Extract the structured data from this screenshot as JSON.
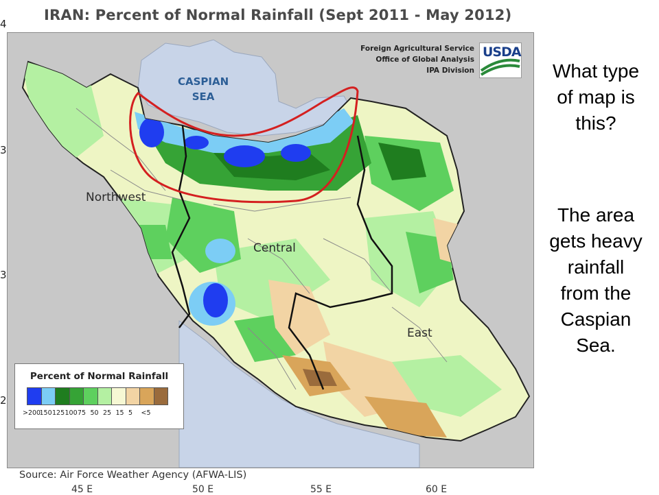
{
  "map": {
    "title": "IRAN: Percent of Normal Rainfall (Sept 2011 - May 2012)",
    "agency_lines": [
      "Foreign Agricultural Service",
      "Office of Global Analysis",
      "IPA Division"
    ],
    "logo_text": "USDA",
    "sea_label_lines": [
      "CASPIAN",
      "SEA"
    ],
    "region_labels": {
      "northwest": "Northwest",
      "central": "Central",
      "east": "East"
    },
    "source": "Source: Air Force Weather Agency (AFWA-LIS)",
    "left_edge_marks": [
      "4",
      "3",
      "3",
      "2"
    ],
    "bottom_edge_marks": [
      "45 E",
      "50 E",
      "55 E",
      "60 E"
    ],
    "highlight": {
      "color": "#d42020",
      "shape": "ellipse-outline",
      "encircles": "Caspian coast"
    }
  },
  "legend": {
    "title": "Percent of Normal Rainfall",
    "bins": [
      {
        "label": ">200",
        "color": "#1f3df0"
      },
      {
        "label": "150",
        "color": "#7ccdf5"
      },
      {
        "label": "125",
        "color": "#1f7d1f"
      },
      {
        "label": "100",
        "color": "#36a336"
      },
      {
        "label": "75",
        "color": "#5ed05e"
      },
      {
        "label": "50",
        "color": "#b4f0a2"
      },
      {
        "label": "25",
        "color": "#f6f8d4"
      },
      {
        "label": "15",
        "color": "#f2d4a4"
      },
      {
        "label": "5",
        "color": "#d9a55a"
      },
      {
        "label": "<5",
        "color": "#9a6b3c"
      }
    ]
  },
  "side_panel": {
    "question_lines": [
      "What type",
      "of map is",
      "this?"
    ],
    "answer_lines": [
      "The area",
      "gets heavy",
      "rainfall",
      "from the",
      "Caspian",
      "Sea."
    ]
  }
}
